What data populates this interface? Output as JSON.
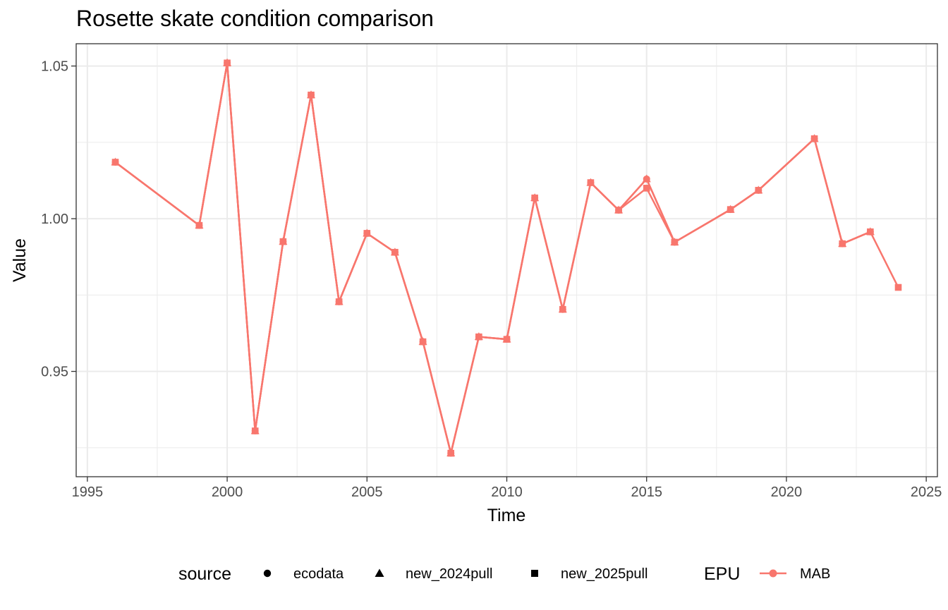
{
  "chart_data": {
    "type": "line",
    "title": "Rosette skate condition comparison",
    "xlabel": "Time",
    "ylabel": "Value",
    "xlim": [
      1994.6,
      2025.4
    ],
    "ylim": [
      0.9155,
      1.0573
    ],
    "x_ticks": [
      1995,
      2000,
      2005,
      2010,
      2015,
      2020,
      2025
    ],
    "x_tick_labels": [
      "1995",
      "2000",
      "2005",
      "2010",
      "2015",
      "2020",
      "2025"
    ],
    "y_ticks": [
      0.95,
      1.0,
      1.05
    ],
    "y_tick_labels": [
      "0.95",
      "1.00",
      "1.05"
    ],
    "grid": true,
    "line_color": "#F8766D",
    "legend": {
      "position": "bottom",
      "source_title": "source",
      "source_items": [
        {
          "shape": "circle",
          "label": "ecodata"
        },
        {
          "shape": "triangle",
          "label": "new_2024pull"
        },
        {
          "shape": "square",
          "label": "new_2025pull"
        }
      ],
      "epu_title": "EPU",
      "epu_items": [
        {
          "label": "MAB",
          "color": "#F8766D"
        }
      ]
    },
    "series": [
      {
        "source": "ecodata",
        "epu": "MAB",
        "shape": "circle",
        "x": [
          1996,
          1999,
          2000,
          2001,
          2002,
          2003,
          2004,
          2005,
          2006,
          2007,
          2008,
          2009,
          2010,
          2011,
          2012,
          2013,
          2014,
          2015,
          2016,
          2018,
          2019,
          2021,
          2022,
          2023
        ],
        "y": [
          1.0185,
          0.9978,
          1.051,
          0.9305,
          0.9925,
          1.0405,
          0.9728,
          0.9952,
          0.989,
          0.9597,
          0.9232,
          0.9613,
          0.9605,
          1.0068,
          0.9703,
          1.0118,
          1.0028,
          1.013,
          0.9923,
          1.003,
          1.0093,
          1.0262,
          0.9918,
          0.9957
        ]
      },
      {
        "source": "new_2024pull",
        "epu": "MAB",
        "shape": "triangle",
        "x": [
          1996,
          1999,
          2000,
          2001,
          2002,
          2003,
          2004,
          2005,
          2006,
          2007,
          2008,
          2009,
          2010,
          2011,
          2012,
          2013,
          2014,
          2015,
          2016,
          2018,
          2019,
          2021,
          2022,
          2023
        ],
        "y": [
          1.0185,
          0.9978,
          1.051,
          0.9305,
          0.9925,
          1.0405,
          0.9728,
          0.9952,
          0.989,
          0.9597,
          0.9232,
          0.9613,
          0.9605,
          1.0068,
          0.9703,
          1.0118,
          1.0028,
          1.013,
          0.9923,
          1.003,
          1.0093,
          1.0262,
          0.9918,
          0.9957
        ]
      },
      {
        "source": "new_2025pull",
        "epu": "MAB",
        "shape": "square",
        "x": [
          1996,
          1999,
          2000,
          2001,
          2002,
          2003,
          2004,
          2005,
          2006,
          2007,
          2008,
          2009,
          2010,
          2011,
          2012,
          2013,
          2014,
          2015,
          2016,
          2018,
          2019,
          2021,
          2022,
          2023,
          2024
        ],
        "y": [
          1.0185,
          0.9978,
          1.051,
          0.9305,
          0.9925,
          1.0405,
          0.9728,
          0.9952,
          0.989,
          0.9597,
          0.9232,
          0.9613,
          0.9605,
          1.0068,
          0.9703,
          1.0118,
          1.0028,
          1.01,
          0.9923,
          1.003,
          1.0093,
          1.0262,
          0.9918,
          0.9957,
          0.9775
        ]
      }
    ]
  }
}
